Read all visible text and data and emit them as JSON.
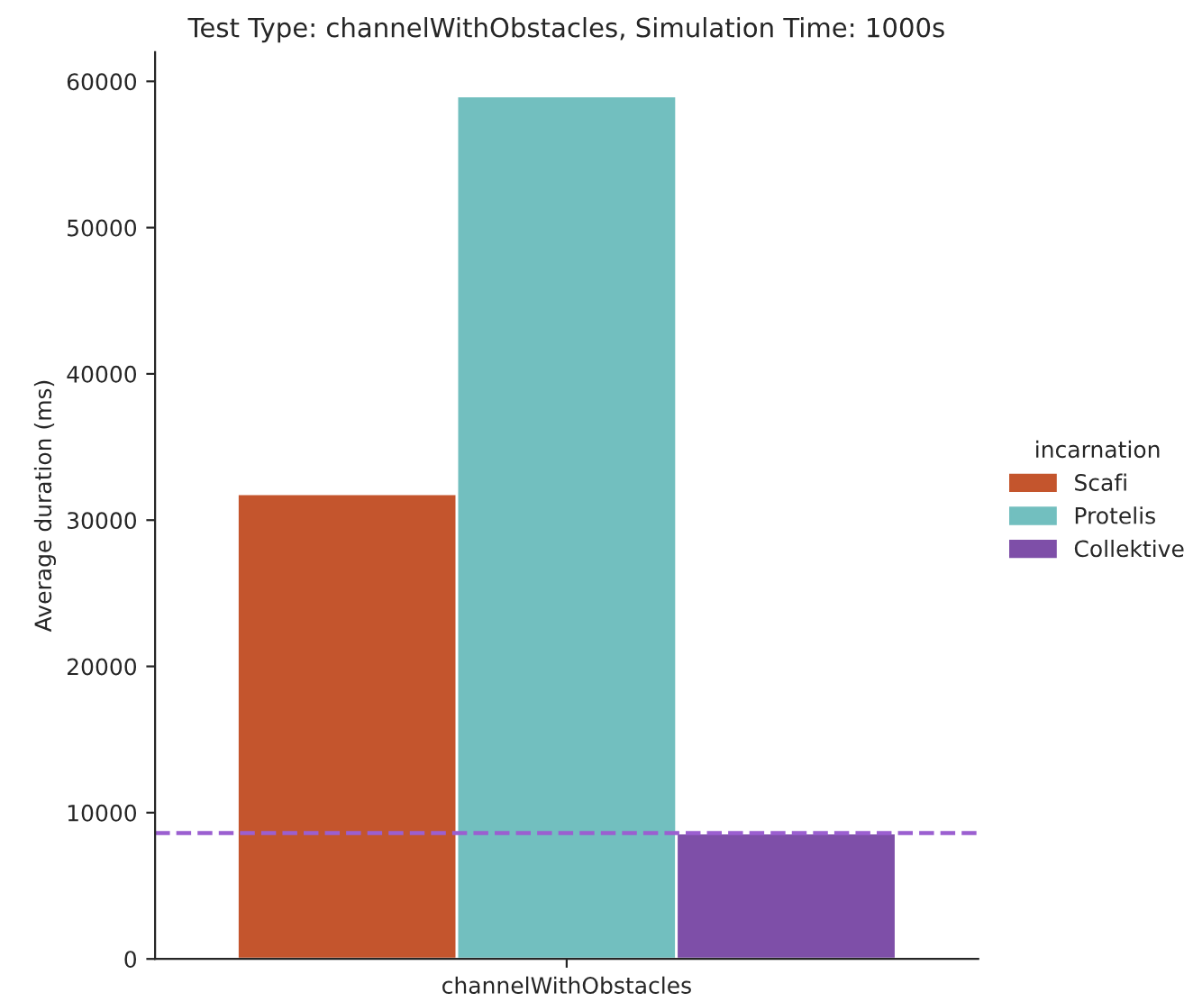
{
  "chart_data": {
    "type": "bar",
    "title": "Test Type: channelWithObstacles, Simulation Time: 1000s",
    "ylabel": "Average duration (ms)",
    "legend_title": "incarnation",
    "categories": [
      "channelWithObstacles"
    ],
    "series": [
      {
        "name": "Scafi",
        "color": "#c4552d",
        "values": [
          31800
        ]
      },
      {
        "name": "Protelis",
        "color": "#72bfbf",
        "values": [
          59000
        ]
      },
      {
        "name": "Collektive",
        "color": "#7e4fa8",
        "values": [
          8600
        ]
      }
    ],
    "ylim": [
      0,
      62000
    ],
    "yticks": [
      0,
      10000,
      20000,
      30000,
      40000,
      50000,
      60000
    ],
    "ref_lines": [
      {
        "axis": "y",
        "value": 8600,
        "color": "#9b5fd0",
        "line_style": "dashed"
      }
    ],
    "grid": false,
    "legend": "right"
  }
}
